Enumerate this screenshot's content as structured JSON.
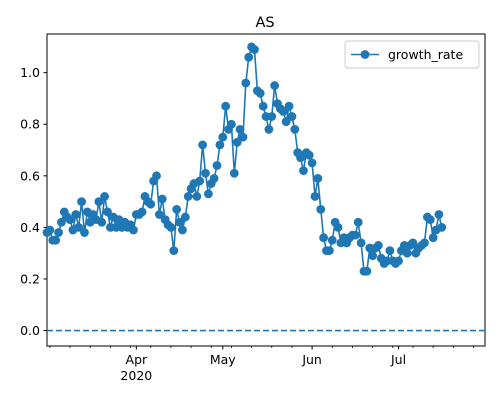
{
  "chart_data": {
    "type": "line",
    "title": "AS",
    "xlabel": "",
    "ylabel": "",
    "x_start": "2020-03-01",
    "x_end": "2020-07-31",
    "ylim": [
      -0.06,
      1.15
    ],
    "yticks": [
      0.0,
      0.2,
      0.4,
      0.6,
      0.8,
      1.0
    ],
    "ytick_labels": [
      "0.0",
      "0.2",
      "0.4",
      "0.6",
      "0.8",
      "1.0"
    ],
    "xticks_major": [
      {
        "date": "2020-04-01",
        "label": "Apr",
        "sublabel": "2020"
      },
      {
        "date": "2020-05-01",
        "label": "May",
        "sublabel": ""
      },
      {
        "date": "2020-06-01",
        "label": "Jun",
        "sublabel": ""
      },
      {
        "date": "2020-07-01",
        "label": "Jul",
        "sublabel": ""
      }
    ],
    "grid": false,
    "legend": {
      "position": "top-right",
      "entries": [
        "growth_rate"
      ]
    },
    "reference_line": {
      "y": 0.0,
      "style": "dashed"
    },
    "series": [
      {
        "name": "growth_rate",
        "color": "#1f77b4",
        "marker": "circle",
        "points": [
          [
            "2020-03-01",
            0.38
          ],
          [
            "2020-03-02",
            0.39
          ],
          [
            "2020-03-03",
            0.35
          ],
          [
            "2020-03-04",
            0.35
          ],
          [
            "2020-03-05",
            0.38
          ],
          [
            "2020-03-06",
            0.42
          ],
          [
            "2020-03-07",
            0.46
          ],
          [
            "2020-03-08",
            0.44
          ],
          [
            "2020-03-09",
            0.43
          ],
          [
            "2020-03-10",
            0.39
          ],
          [
            "2020-03-11",
            0.45
          ],
          [
            "2020-03-12",
            0.4
          ],
          [
            "2020-03-13",
            0.5
          ],
          [
            "2020-03-14",
            0.38
          ],
          [
            "2020-03-15",
            0.46
          ],
          [
            "2020-03-16",
            0.42
          ],
          [
            "2020-03-17",
            0.45
          ],
          [
            "2020-03-18",
            0.43
          ],
          [
            "2020-03-19",
            0.5
          ],
          [
            "2020-03-20",
            0.42
          ],
          [
            "2020-03-21",
            0.52
          ],
          [
            "2020-03-22",
            0.46
          ],
          [
            "2020-03-23",
            0.4
          ],
          [
            "2020-03-24",
            0.44
          ],
          [
            "2020-03-25",
            0.4
          ],
          [
            "2020-03-26",
            0.43
          ],
          [
            "2020-03-27",
            0.4
          ],
          [
            "2020-03-28",
            0.42
          ],
          [
            "2020-03-29",
            0.4
          ],
          [
            "2020-03-30",
            0.41
          ],
          [
            "2020-03-31",
            0.39
          ],
          [
            "2020-04-01",
            0.45
          ],
          [
            "2020-04-02",
            0.45
          ],
          [
            "2020-04-03",
            0.46
          ],
          [
            "2020-04-04",
            0.52
          ],
          [
            "2020-04-05",
            0.5
          ],
          [
            "2020-04-06",
            0.49
          ],
          [
            "2020-04-07",
            0.58
          ],
          [
            "2020-04-08",
            0.6
          ],
          [
            "2020-04-09",
            0.45
          ],
          [
            "2020-04-10",
            0.51
          ],
          [
            "2020-04-11",
            0.43
          ],
          [
            "2020-04-12",
            0.41
          ],
          [
            "2020-04-13",
            0.4
          ],
          [
            "2020-04-14",
            0.31
          ],
          [
            "2020-04-15",
            0.47
          ],
          [
            "2020-04-16",
            0.42
          ],
          [
            "2020-04-17",
            0.39
          ],
          [
            "2020-04-18",
            0.44
          ],
          [
            "2020-04-19",
            0.52
          ],
          [
            "2020-04-20",
            0.55
          ],
          [
            "2020-04-21",
            0.57
          ],
          [
            "2020-04-22",
            0.52
          ],
          [
            "2020-04-23",
            0.58
          ],
          [
            "2020-04-24",
            0.72
          ],
          [
            "2020-04-25",
            0.61
          ],
          [
            "2020-04-26",
            0.53
          ],
          [
            "2020-04-27",
            0.57
          ],
          [
            "2020-04-28",
            0.59
          ],
          [
            "2020-04-29",
            0.64
          ],
          [
            "2020-04-30",
            0.72
          ],
          [
            "2020-05-01",
            0.75
          ],
          [
            "2020-05-02",
            0.87
          ],
          [
            "2020-05-03",
            0.78
          ],
          [
            "2020-05-04",
            0.8
          ],
          [
            "2020-05-05",
            0.61
          ],
          [
            "2020-05-06",
            0.73
          ],
          [
            "2020-05-07",
            0.78
          ],
          [
            "2020-05-08",
            0.75
          ],
          [
            "2020-05-09",
            0.96
          ],
          [
            "2020-05-10",
            1.06
          ],
          [
            "2020-05-11",
            1.1
          ],
          [
            "2020-05-12",
            1.09
          ],
          [
            "2020-05-13",
            0.93
          ],
          [
            "2020-05-14",
            0.92
          ],
          [
            "2020-05-15",
            0.87
          ],
          [
            "2020-05-16",
            0.83
          ],
          [
            "2020-05-17",
            0.78
          ],
          [
            "2020-05-18",
            0.83
          ],
          [
            "2020-05-19",
            0.95
          ],
          [
            "2020-05-20",
            0.88
          ],
          [
            "2020-05-21",
            0.86
          ],
          [
            "2020-05-22",
            0.85
          ],
          [
            "2020-05-23",
            0.81
          ],
          [
            "2020-05-24",
            0.87
          ],
          [
            "2020-05-25",
            0.83
          ],
          [
            "2020-05-26",
            0.78
          ],
          [
            "2020-05-27",
            0.69
          ],
          [
            "2020-05-28",
            0.67
          ],
          [
            "2020-05-29",
            0.62
          ],
          [
            "2020-05-30",
            0.69
          ],
          [
            "2020-05-31",
            0.68
          ],
          [
            "2020-06-01",
            0.65
          ],
          [
            "2020-06-02",
            0.52
          ],
          [
            "2020-06-03",
            0.59
          ],
          [
            "2020-06-04",
            0.47
          ],
          [
            "2020-06-05",
            0.36
          ],
          [
            "2020-06-06",
            0.31
          ],
          [
            "2020-06-07",
            0.31
          ],
          [
            "2020-06-08",
            0.35
          ],
          [
            "2020-06-09",
            0.42
          ],
          [
            "2020-06-10",
            0.4
          ],
          [
            "2020-06-11",
            0.34
          ],
          [
            "2020-06-12",
            0.36
          ],
          [
            "2020-06-13",
            0.34
          ],
          [
            "2020-06-14",
            0.36
          ],
          [
            "2020-06-15",
            0.37
          ],
          [
            "2020-06-16",
            0.37
          ],
          [
            "2020-06-17",
            0.42
          ],
          [
            "2020-06-18",
            0.34
          ],
          [
            "2020-06-19",
            0.23
          ],
          [
            "2020-06-20",
            0.23
          ],
          [
            "2020-06-21",
            0.32
          ],
          [
            "2020-06-22",
            0.29
          ],
          [
            "2020-06-23",
            0.32
          ],
          [
            "2020-06-24",
            0.33
          ],
          [
            "2020-06-25",
            0.28
          ],
          [
            "2020-06-26",
            0.26
          ],
          [
            "2020-06-27",
            0.27
          ],
          [
            "2020-06-28",
            0.31
          ],
          [
            "2020-06-29",
            0.27
          ],
          [
            "2020-06-30",
            0.26
          ],
          [
            "2020-07-01",
            0.27
          ],
          [
            "2020-07-02",
            0.31
          ],
          [
            "2020-07-03",
            0.33
          ],
          [
            "2020-07-04",
            0.3
          ],
          [
            "2020-07-05",
            0.33
          ],
          [
            "2020-07-06",
            0.34
          ],
          [
            "2020-07-07",
            0.3
          ],
          [
            "2020-07-08",
            0.32
          ],
          [
            "2020-07-09",
            0.33
          ],
          [
            "2020-07-10",
            0.34
          ],
          [
            "2020-07-11",
            0.44
          ],
          [
            "2020-07-12",
            0.43
          ],
          [
            "2020-07-13",
            0.36
          ],
          [
            "2020-07-14",
            0.39
          ],
          [
            "2020-07-15",
            0.45
          ],
          [
            "2020-07-16",
            0.4
          ]
        ]
      }
    ]
  }
}
